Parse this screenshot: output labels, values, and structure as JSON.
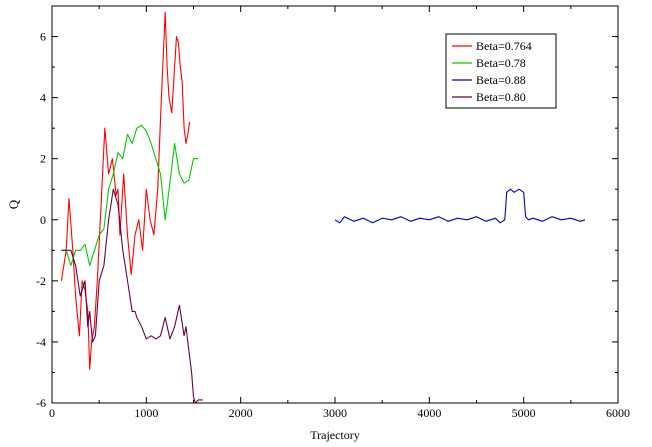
{
  "chart_data": {
    "type": "line",
    "title": "",
    "xlabel": "Trajectory",
    "ylabel": "Q",
    "xlim": [
      0,
      6000
    ],
    "ylim": [
      -6,
      7
    ],
    "xticks": [
      0,
      1000,
      2000,
      3000,
      4000,
      5000,
      6000
    ],
    "yticks": [
      -6,
      -4,
      -2,
      0,
      2,
      4,
      6
    ],
    "grid": false,
    "legend_position": "top-right",
    "series": [
      {
        "name": "Beta=0.764",
        "color": "#ff0000",
        "x": [
          100,
          150,
          180,
          220,
          250,
          290,
          320,
          350,
          380,
          400,
          420,
          450,
          480,
          520,
          560,
          600,
          640,
          680,
          700,
          720,
          760,
          800,
          840,
          880,
          920,
          960,
          1000,
          1040,
          1080,
          1120,
          1160,
          1200,
          1220,
          1240,
          1270,
          1300,
          1320,
          1340,
          1360,
          1380,
          1400,
          1420,
          1440,
          1460
        ],
        "y": [
          -2,
          -1,
          0.7,
          -1,
          -2.5,
          -3.8,
          -2,
          -2.3,
          -3,
          -4.9,
          -4,
          -3.5,
          -2,
          0.5,
          3,
          1.5,
          2,
          0.8,
          1,
          -0.5,
          1.5,
          -0.5,
          -1.8,
          -0.5,
          0,
          -1,
          1,
          0,
          -0.5,
          1,
          4,
          6.8,
          5,
          4,
          3.5,
          5,
          6,
          5.8,
          5,
          4.5,
          3,
          2.5,
          2.8,
          3.2
        ]
      },
      {
        "name": "Beta=0.78",
        "color": "#00cc00",
        "x": [
          100,
          150,
          200,
          250,
          300,
          350,
          400,
          450,
          500,
          550,
          600,
          650,
          700,
          750,
          800,
          850,
          900,
          950,
          1000,
          1050,
          1100,
          1150,
          1200,
          1250,
          1300,
          1350,
          1400,
          1450,
          1500,
          1550
        ],
        "y": [
          -1,
          -1,
          -1.5,
          -1,
          -1,
          -0.8,
          -1.5,
          -1,
          -0.5,
          -0.3,
          1,
          1.5,
          2.2,
          2,
          2.8,
          2.5,
          3,
          3.1,
          2.9,
          2.5,
          2,
          1.5,
          0,
          1.2,
          2.5,
          1.5,
          1.2,
          1.3,
          2,
          2
        ]
      },
      {
        "name": "Beta=0.88",
        "color": "#0000cc",
        "x": [
          3000,
          3050,
          3100,
          3200,
          3300,
          3400,
          3500,
          3600,
          3700,
          3800,
          3900,
          4000,
          4100,
          4200,
          4300,
          4400,
          4500,
          4600,
          4700,
          4750,
          4800,
          4820,
          4860,
          4900,
          4950,
          5000,
          5020,
          5050,
          5100,
          5200,
          5300,
          5400,
          5500,
          5600,
          5650
        ],
        "y": [
          0,
          -0.1,
          0.1,
          -0.05,
          0.05,
          -0.1,
          0.05,
          0,
          0.1,
          -0.05,
          0.05,
          0,
          0.1,
          -0.05,
          0.05,
          0,
          0.1,
          -0.05,
          0.05,
          -0.1,
          0,
          0.9,
          1,
          0.9,
          1,
          0.9,
          0.1,
          0,
          0.05,
          -0.05,
          0.1,
          0,
          0.05,
          -0.05,
          0
        ]
      },
      {
        "name": "Beta=0.80",
        "color": "#660044",
        "x": [
          100,
          150,
          200,
          250,
          300,
          350,
          380,
          400,
          430,
          460,
          500,
          550,
          600,
          650,
          700,
          750,
          800,
          850,
          880,
          900,
          950,
          1000,
          1050,
          1100,
          1150,
          1200,
          1250,
          1300,
          1350,
          1400,
          1420,
          1440,
          1460,
          1480,
          1500,
          1520,
          1550,
          1600
        ],
        "y": [
          -1,
          -1,
          -1,
          -1.5,
          -2.5,
          -2,
          -3.5,
          -3,
          -4,
          -3.8,
          -2,
          -1.5,
          0,
          1,
          0.5,
          -1,
          -2,
          -3,
          -3,
          -3.2,
          -3.5,
          -3.9,
          -3.8,
          -3.9,
          -3.8,
          -3.2,
          -3.9,
          -3.5,
          -2.8,
          -3.8,
          -3.5,
          -4,
          -4.5,
          -5,
          -5.8,
          -6,
          -5.9,
          -5.9
        ]
      }
    ]
  }
}
